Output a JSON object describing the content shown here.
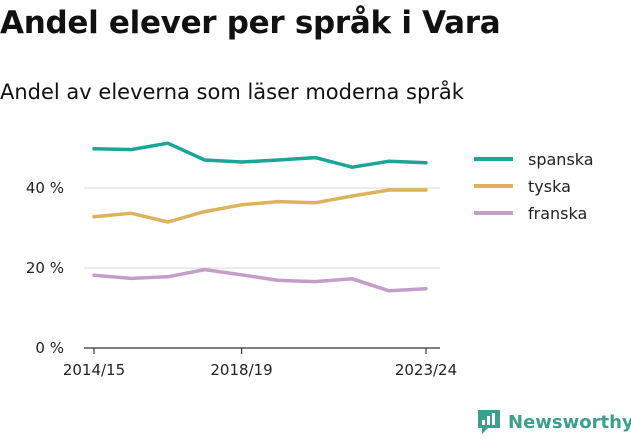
{
  "page": {
    "title": "Andel elever per språk i Vara",
    "subtitle": "Andel av eleverna som läser moderna språk",
    "brand": "Newsworthy",
    "brand_color": "#3d9e8e"
  },
  "chart_data": {
    "type": "line",
    "x": [
      "2014/15",
      "2015/16",
      "2016/17",
      "2017/18",
      "2018/19",
      "2019/20",
      "2020/21",
      "2021/22",
      "2022/23",
      "2023/24"
    ],
    "xticks": [
      "2014/15",
      "2018/19",
      "2023/24"
    ],
    "yticks": [
      0,
      20,
      40
    ],
    "ytick_labels": [
      "0 %",
      "20 %",
      "40 %"
    ],
    "ylim": [
      0,
      55
    ],
    "grid": "horizontal",
    "legend_position": "right",
    "series": [
      {
        "name": "spanska",
        "color": "#1aa597",
        "values": [
          49.8,
          49.6,
          51.2,
          47.0,
          46.5,
          47.0,
          47.6,
          45.2,
          46.7,
          46.3
        ]
      },
      {
        "name": "tyska",
        "color": "#dcb35c",
        "values": [
          32.8,
          33.7,
          31.5,
          34.1,
          35.8,
          36.6,
          36.3,
          38.0,
          39.5,
          39.5
        ]
      },
      {
        "name": "franska",
        "color": "#c39ec9",
        "values": [
          18.2,
          17.4,
          17.8,
          19.6,
          18.3,
          16.9,
          16.6,
          17.3,
          14.3,
          14.8
        ]
      }
    ]
  }
}
